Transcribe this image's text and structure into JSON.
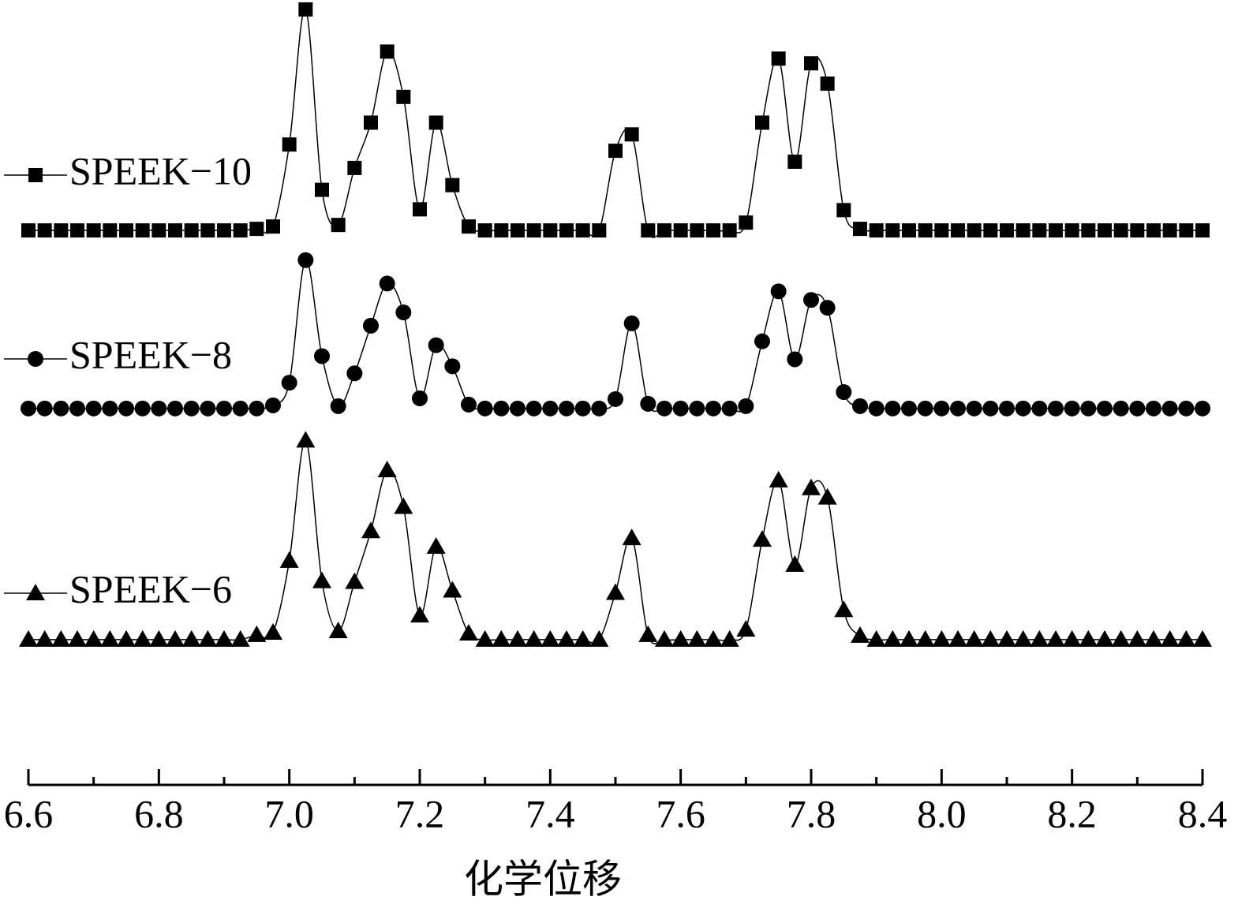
{
  "chart_data": {
    "type": "line",
    "xlabel": "化学位移",
    "x": [
      6.6,
      6.625,
      6.65,
      6.675,
      6.7,
      6.725,
      6.75,
      6.775,
      6.8,
      6.825,
      6.85,
      6.875,
      6.9,
      6.925,
      6.95,
      6.975,
      7,
      7.025,
      7.05,
      7.075,
      7.1,
      7.125,
      7.15,
      7.175,
      7.2,
      7.225,
      7.25,
      7.275,
      7.3,
      7.325,
      7.35,
      7.375,
      7.4,
      7.425,
      7.45,
      7.475,
      7.5,
      7.525,
      7.55,
      7.575,
      7.6,
      7.625,
      7.65,
      7.675,
      7.7,
      7.725,
      7.75,
      7.775,
      7.8,
      7.825,
      7.85,
      7.875,
      7.9,
      7.925,
      7.95,
      7.975,
      8,
      8.025,
      8.05,
      8.075,
      8.1,
      8.125,
      8.15,
      8.175,
      8.2,
      8.225,
      8.25,
      8.275,
      8.3,
      8.325,
      8.35,
      8.375,
      8.4
    ],
    "series": [
      {
        "name": "SPEEK−10",
        "color": "#000000",
        "marker": "square",
        "values": [
          71,
          71,
          71,
          71,
          71,
          71,
          71,
          71,
          71,
          71,
          71,
          71,
          71,
          71,
          71.2,
          71.5,
          82.0,
          99.3,
          76.2,
          71.7,
          79.0,
          84.8,
          93.9,
          88.1,
          73.7,
          84.8,
          76.8,
          71.5,
          71,
          71,
          71,
          71,
          71,
          71,
          71,
          71,
          81.2,
          83.3,
          71,
          71,
          71,
          71,
          71,
          71,
          72.0,
          84.8,
          93.0,
          79.8,
          92.4,
          89.8,
          73.6,
          71.2,
          71,
          71,
          71,
          71,
          71,
          71,
          71,
          71,
          71,
          71,
          71,
          71,
          71,
          71,
          71,
          71,
          71,
          71,
          71,
          71,
          71
        ]
      },
      {
        "name": "SPEEK−8",
        "color": "#000000",
        "marker": "circle",
        "values": [
          48.2,
          48.2,
          48.2,
          48.2,
          48.2,
          48.2,
          48.2,
          48.2,
          48.2,
          48.2,
          48.2,
          48.2,
          48.2,
          48.2,
          48.2,
          48.6,
          51.5,
          67.2,
          54.9,
          48.5,
          52.7,
          58.8,
          64.2,
          60.5,
          49.5,
          56.3,
          53.6,
          48.7,
          48.2,
          48.2,
          48.2,
          48.2,
          48.2,
          48.2,
          48.2,
          48.2,
          49.4,
          59.1,
          48.8,
          48.2,
          48.2,
          48.2,
          48.2,
          48.2,
          48.5,
          56.8,
          63.2,
          54.5,
          62.1,
          61.1,
          50.3,
          48.5,
          48.2,
          48.2,
          48.2,
          48.2,
          48.2,
          48.2,
          48.2,
          48.2,
          48.2,
          48.2,
          48.2,
          48.2,
          48.2,
          48.2,
          48.2,
          48.2,
          48.2,
          48.2,
          48.2,
          48.2,
          48.2
        ]
      },
      {
        "name": "SPEEK−6",
        "color": "#000000",
        "marker": "triangle",
        "values": [
          18.6,
          18.6,
          18.6,
          18.6,
          18.6,
          18.6,
          18.6,
          18.6,
          18.6,
          18.6,
          18.6,
          18.6,
          18.6,
          18.6,
          19.2,
          19.5,
          28.7,
          44.1,
          26.1,
          19.7,
          26.0,
          32.5,
          40.3,
          35.6,
          21.7,
          30.5,
          24.9,
          19.4,
          18.6,
          18.6,
          18.6,
          18.6,
          18.6,
          18.6,
          18.6,
          18.6,
          24.6,
          31.6,
          19.2,
          18.6,
          18.6,
          18.6,
          18.6,
          18.6,
          19.9,
          31.4,
          39.0,
          28.2,
          38.0,
          36.8,
          22.4,
          19.1,
          18.6,
          18.6,
          18.6,
          18.6,
          18.6,
          18.6,
          18.6,
          18.6,
          18.6,
          18.6,
          18.6,
          18.6,
          18.6,
          18.6,
          18.6,
          18.6,
          18.6,
          18.6,
          18.6,
          18.6,
          18.6
        ]
      }
    ],
    "xlim": [
      6.6,
      8.4
    ],
    "xticks": [
      6.6,
      6.8,
      {
        "value": 7,
        "label": "7.0"
      },
      7.2,
      7.4,
      7.6,
      7.8,
      {
        "value": 8,
        "label": "8.0"
      },
      8.2,
      8.4
    ],
    "xminorticks": [
      6.7,
      6.9,
      7.1,
      7.3,
      7.5,
      7.7,
      7.9,
      8.1,
      8.3
    ],
    "ylim": [
      0,
      100
    ]
  }
}
